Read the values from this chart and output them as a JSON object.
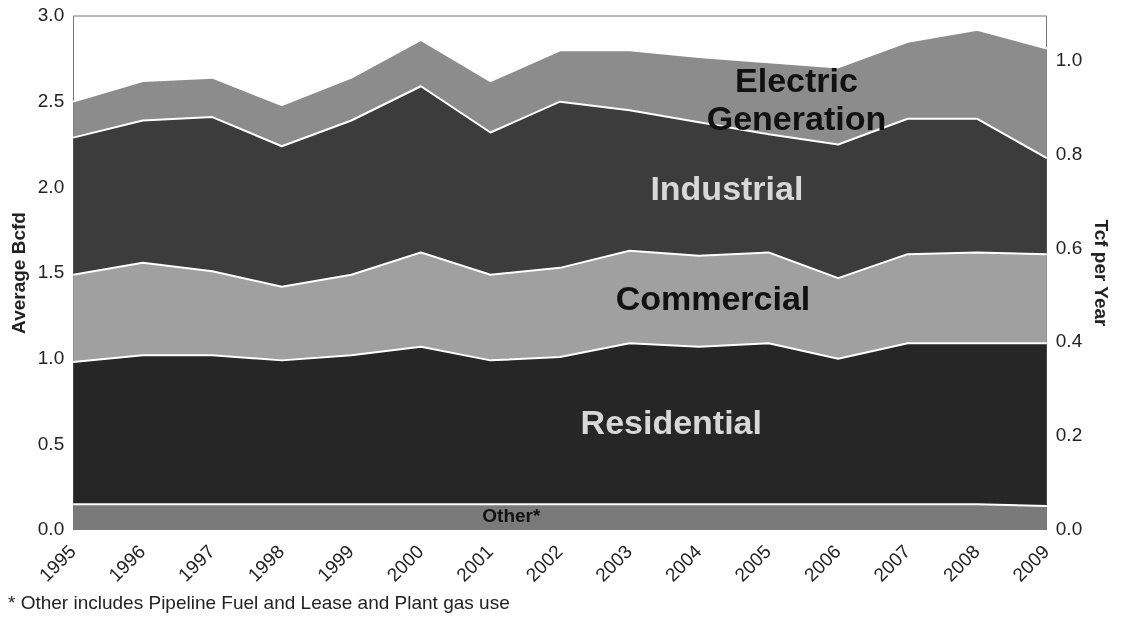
{
  "chart_data": {
    "type": "area",
    "stacked": true,
    "ylabel": "Average Bcfd",
    "y2label": "Tcf per Year",
    "categories": [
      "1995",
      "1996",
      "1997",
      "1998",
      "1999",
      "2000",
      "2001",
      "2002",
      "2003",
      "2004",
      "2005",
      "2006",
      "2007",
      "2008",
      "2009"
    ],
    "series": [
      {
        "name": "Other*",
        "color": "#7a7a7a",
        "values": [
          0.15,
          0.15,
          0.15,
          0.15,
          0.15,
          0.15,
          0.15,
          0.15,
          0.15,
          0.15,
          0.15,
          0.15,
          0.15,
          0.15,
          0.14
        ]
      },
      {
        "name": "Residential",
        "color": "#262626",
        "values": [
          0.83,
          0.87,
          0.87,
          0.84,
          0.87,
          0.92,
          0.84,
          0.86,
          0.94,
          0.92,
          0.94,
          0.85,
          0.94,
          0.94,
          0.95
        ]
      },
      {
        "name": "Commercial",
        "color": "#a0a0a0",
        "values": [
          0.51,
          0.54,
          0.49,
          0.43,
          0.47,
          0.55,
          0.5,
          0.52,
          0.54,
          0.53,
          0.53,
          0.47,
          0.52,
          0.53,
          0.52
        ]
      },
      {
        "name": "Industrial",
        "color": "#3c3c3c",
        "values": [
          0.8,
          0.83,
          0.9,
          0.82,
          0.9,
          0.97,
          0.83,
          0.97,
          0.82,
          0.78,
          0.69,
          0.78,
          0.79,
          0.78,
          0.56
        ]
      },
      {
        "name": "Electric Generation",
        "color": "#8c8c8c",
        "values": [
          0.21,
          0.23,
          0.23,
          0.24,
          0.25,
          0.27,
          0.3,
          0.3,
          0.35,
          0.38,
          0.42,
          0.45,
          0.45,
          0.52,
          0.64
        ]
      }
    ],
    "ylim": [
      0,
      3
    ],
    "yticks": [
      {
        "value": 0,
        "label": "0.0"
      },
      {
        "value": 0.5,
        "label": "0.5"
      },
      {
        "value": 1,
        "label": "1.0"
      },
      {
        "value": 1.5,
        "label": "1.5"
      },
      {
        "value": 2,
        "label": "2.0"
      },
      {
        "value": 2.5,
        "label": "2.5"
      },
      {
        "value": 3,
        "label": "3.0"
      }
    ],
    "y2lim": [
      0,
      1.095
    ],
    "y2ticks": [
      {
        "value": 0,
        "label": "0.0"
      },
      {
        "value": 0.2,
        "label": "0.2"
      },
      {
        "value": 0.4,
        "label": "0.4"
      },
      {
        "value": 0.6,
        "label": "0.6"
      },
      {
        "value": 0.8,
        "label": "0.8"
      },
      {
        "value": 1,
        "label": "1.0"
      }
    ],
    "grid": false,
    "legend": false,
    "annotations": [
      "* Other includes Pipeline Fuel and Lease and Plant gas use"
    ]
  }
}
